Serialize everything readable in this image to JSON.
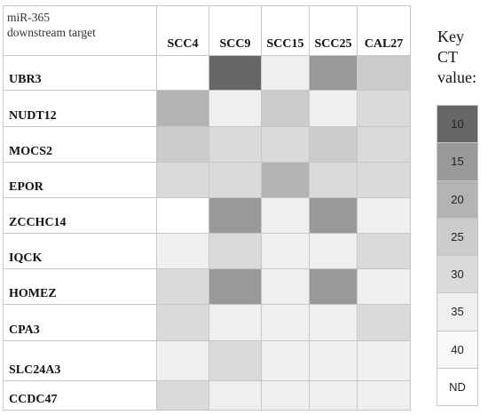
{
  "chart_data": {
    "type": "heatmap",
    "corner_label": "miR-365\ndownstream target",
    "columns": [
      "SCC4",
      "SCC9",
      "SCC15",
      "SCC25",
      "CAL27"
    ],
    "rows": [
      "UBR3",
      "NUDT12",
      "MOCS2",
      "EPOR",
      "ZCCHC14",
      "IQCK",
      "HOMEZ",
      "CPA3",
      "SLC24A3",
      "CCDC47"
    ],
    "values": [
      [
        null,
        10,
        35,
        15,
        25
      ],
      [
        20,
        35,
        25,
        35,
        30
      ],
      [
        25,
        30,
        30,
        25,
        30
      ],
      [
        30,
        30,
        20,
        30,
        30
      ],
      [
        null,
        15,
        35,
        15,
        35
      ],
      [
        35,
        30,
        35,
        35,
        30
      ],
      [
        30,
        15,
        35,
        15,
        35
      ],
      [
        30,
        35,
        35,
        35,
        30
      ],
      [
        35,
        30,
        35,
        35,
        35
      ],
      [
        30,
        35,
        35,
        35,
        35
      ]
    ],
    "legend": {
      "title": "Key\nCT\nvalue:",
      "entries": [
        {
          "label": "10",
          "value": 10,
          "color": "#666666"
        },
        {
          "label": "15",
          "value": 15,
          "color": "#999999"
        },
        {
          "label": "20",
          "value": 20,
          "color": "#b3b3b3"
        },
        {
          "label": "25",
          "value": 25,
          "color": "#cccccc"
        },
        {
          "label": "30",
          "value": 30,
          "color": "#dadada"
        },
        {
          "label": "35",
          "value": 35,
          "color": "#efefef"
        },
        {
          "label": "40",
          "value": 40,
          "color": "#f8f8f8"
        },
        {
          "label": "ND",
          "value": null,
          "color": "#ffffff"
        }
      ],
      "placement": "right"
    }
  }
}
